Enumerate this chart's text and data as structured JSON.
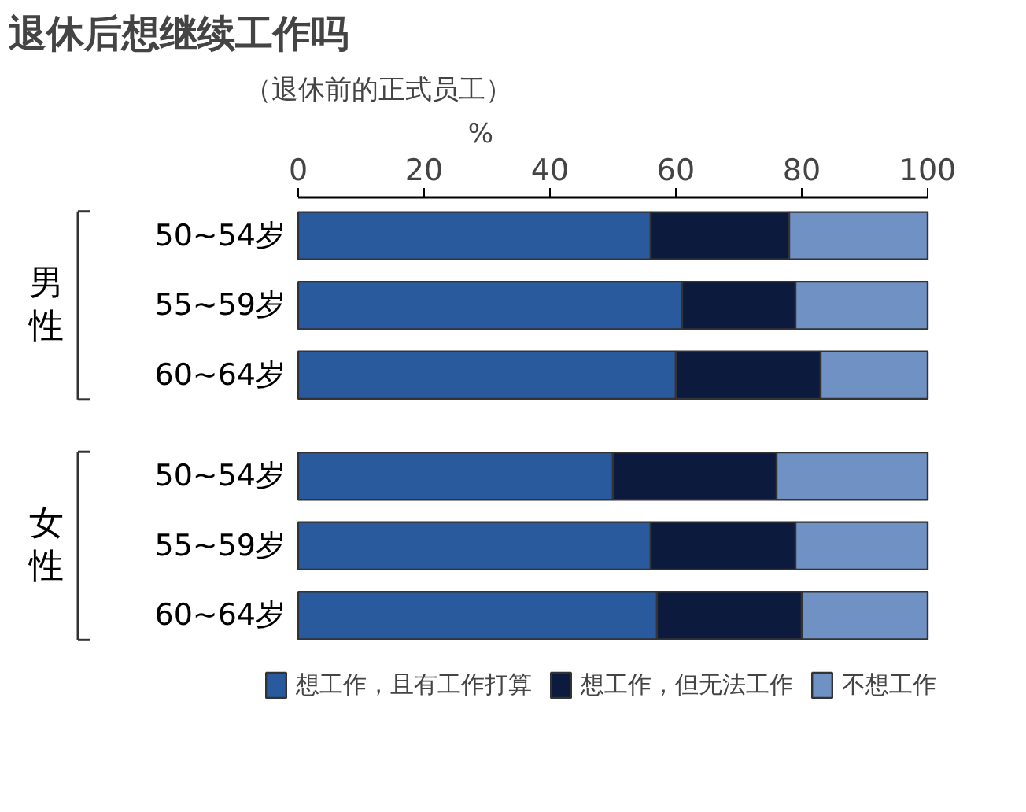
{
  "chart_data": {
    "type": "bar",
    "orientation": "horizontal",
    "stacked": true,
    "title": "退休后想继续工作吗",
    "subtitle": "（退休前的正式员工）",
    "xlabel": "%",
    "categories": [
      "50~54岁",
      "55~59岁",
      "60~64岁",
      "50~54岁",
      "55~59岁",
      "60~64岁"
    ],
    "series": [
      {
        "name": "想工作，且有工作打算",
        "color": "#2a5a9e",
        "values": [
          56,
          61,
          60,
          50,
          56,
          57
        ]
      },
      {
        "name": "想工作，但无法工作",
        "color": "#0b1a3d",
        "values": [
          22,
          18,
          23,
          26,
          23,
          23
        ]
      },
      {
        "name": "不想工作",
        "color": "#6f91c4",
        "values": [
          22,
          21,
          17,
          24,
          21,
          20
        ]
      }
    ],
    "annotations": [
      "男性",
      "女性"
    ],
    "xlim": [
      0,
      100
    ],
    "xticks": [
      0,
      20,
      40,
      60,
      80,
      100
    ],
    "grid": false,
    "legend": "bottom"
  }
}
